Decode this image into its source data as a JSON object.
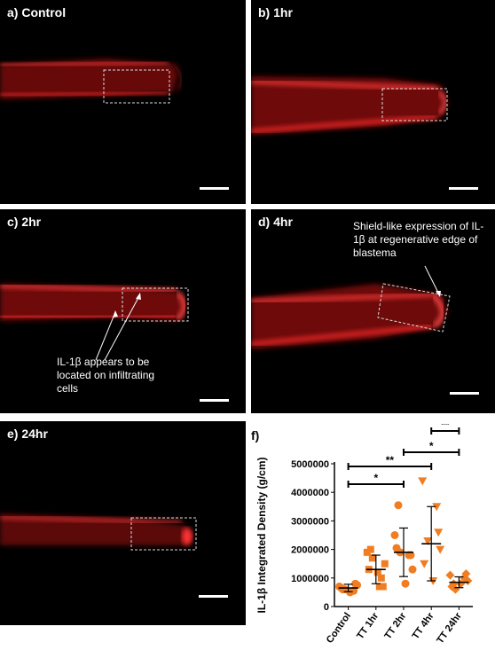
{
  "panels": [
    {
      "label": "a) Control"
    },
    {
      "label": "b) 1hr"
    },
    {
      "label": "c) 2hr"
    },
    {
      "label": "d) 4hr"
    },
    {
      "label": "e) 24hr"
    }
  ],
  "annotations": {
    "c_text": "IL-1β appears to be located on infiltrating cells",
    "d_text": "Shield-like expression of IL-1β at regenerative edge of blastema"
  },
  "colors": {
    "fluorescence": "#e8161b",
    "points": "#f07d22",
    "background": "#000000"
  },
  "chart_data": {
    "type": "scatter",
    "panel_label": "f)",
    "ylabel": "IL-1β Integrated Density (g/cm)",
    "xlabel": "",
    "categories": [
      "Control",
      "TT 1hr",
      "TT 2hr",
      "TT 4hr",
      "TT 24hr"
    ],
    "ylim": [
      0,
      5000000
    ],
    "yticks": [
      "0",
      "1000000",
      "2000000",
      "3000000",
      "4000000",
      "5000000"
    ],
    "markers": [
      "circle",
      "square",
      "circle",
      "triangle-down",
      "diamond"
    ],
    "points": [
      [
        700000,
        550000,
        600000,
        750000,
        650000,
        500000,
        800000,
        600000
      ],
      [
        1900000,
        1000000,
        1700000,
        1500000,
        1300000,
        1200000,
        700000,
        2000000,
        700000
      ],
      [
        2500000,
        1800000,
        1900000,
        1300000,
        2050000,
        800000,
        1800000,
        3550000
      ],
      [
        4400000,
        3500000,
        2300000,
        2000000,
        1500000,
        900000,
        2600000
      ],
      [
        1100000,
        1000000,
        600000,
        900000,
        700000,
        800000,
        1150000,
        800000
      ]
    ],
    "mean": [
      650000,
      1300000,
      1900000,
      2200000,
      850000
    ],
    "sd": [
      130000,
      500000,
      850000,
      1300000,
      190000
    ],
    "significance": [
      {
        "from": 0,
        "to": 2,
        "label": "*"
      },
      {
        "from": 0,
        "to": 3,
        "label": "**"
      },
      {
        "from": 2,
        "to": 4,
        "label": "*"
      },
      {
        "from": 3,
        "to": 4,
        "label": "**"
      }
    ]
  }
}
